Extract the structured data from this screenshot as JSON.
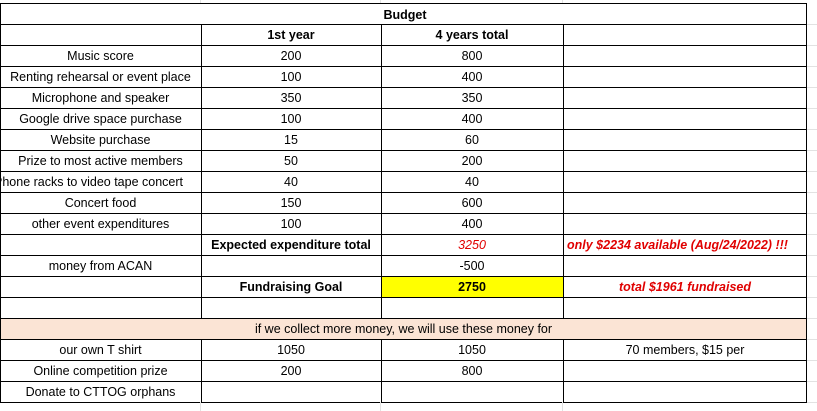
{
  "sheet": {
    "title": "Budget",
    "headers": {
      "first_year": "1st year",
      "four_years": "4 years total"
    },
    "items": [
      {
        "label": "Music score",
        "first": "200",
        "total": "800"
      },
      {
        "label": "Renting rehearsal or event place",
        "first": "100",
        "total": "400"
      },
      {
        "label": "Microphone and speaker",
        "first": "350",
        "total": "350"
      },
      {
        "label": "Google drive space purchase",
        "first": "100",
        "total": "400"
      },
      {
        "label": "Website purchase",
        "first": "15",
        "total": "60"
      },
      {
        "label": "Prize to most active members",
        "first": "50",
        "total": "200"
      },
      {
        "label": "Phone racks to video tape concert",
        "first": "40",
        "total": "40"
      },
      {
        "label": "Concert food",
        "first": "150",
        "total": "600"
      },
      {
        "label": "other event expenditures",
        "first": "100",
        "total": "400"
      }
    ],
    "expected": {
      "label": "Expected expenditure total",
      "value": "3250",
      "note": "only $2234 available (Aug/24/2022)  !!!"
    },
    "acan": {
      "label": "money from ACAN",
      "value": "-500"
    },
    "goal": {
      "label": "Fundraising Goal",
      "value": "2750",
      "note": "total $1961 fundraised"
    },
    "extra_banner": "if we collect more money, we will use these money for",
    "extras": [
      {
        "label": "our own T shirt",
        "first": "1050",
        "total": "1050",
        "note": "70 members, $15 per"
      },
      {
        "label": "Online competition prize",
        "first": "200",
        "total": "800",
        "note": ""
      },
      {
        "label": "Donate to CTTOG orphans",
        "first": "",
        "total": "",
        "note": ""
      }
    ],
    "colors": {
      "goal_highlight": "#ffff00",
      "banner_fill": "#fbe4d5",
      "warning_text": "#e00000"
    }
  }
}
